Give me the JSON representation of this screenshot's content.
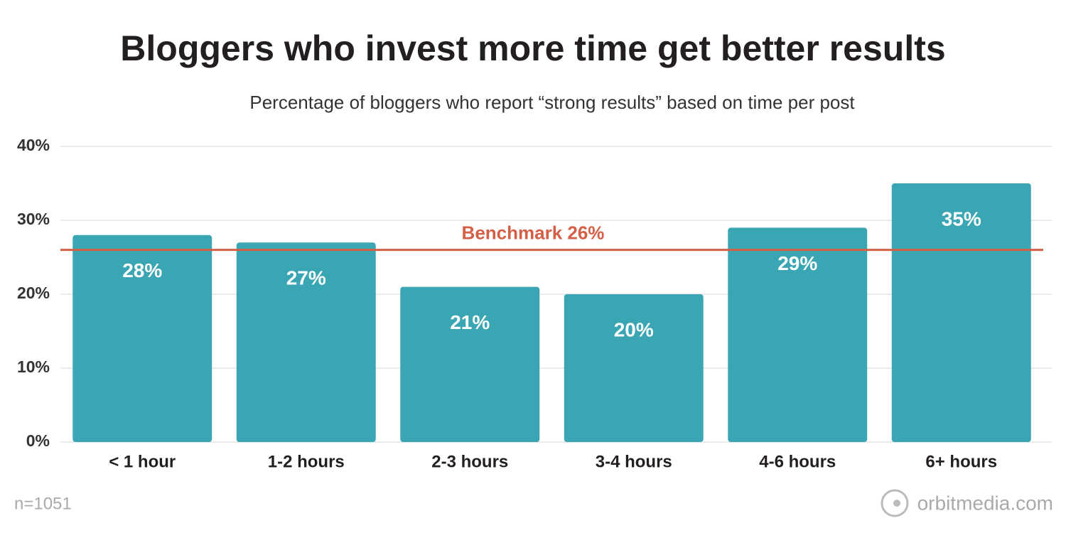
{
  "chart_data": {
    "type": "bar",
    "title": "Bloggers who invest more time get better results",
    "subtitle": "Percentage of bloggers who report “strong results” based on time per post",
    "categories": [
      "< 1 hour",
      "1-2 hours",
      "2-3 hours",
      "3-4 hours",
      "4-6 hours",
      "6+ hours"
    ],
    "values": [
      28,
      27,
      21,
      20,
      29,
      35
    ],
    "value_labels": [
      "28%",
      "27%",
      "21%",
      "20%",
      "29%",
      "35%"
    ],
    "color": "#3aa5b3",
    "ylim": [
      0,
      40
    ],
    "yticks": [
      {
        "value": 0,
        "label": "0%"
      },
      {
        "value": 10,
        "label": "10%"
      },
      {
        "value": 20,
        "label": "20%"
      },
      {
        "value": 30,
        "label": "30%"
      },
      {
        "value": 40,
        "label": "40%"
      }
    ],
    "grid": true,
    "benchmark": {
      "value": 26,
      "label": "Benchmark 26%",
      "color": "#d35f46"
    },
    "note": "n=1051",
    "source": "orbitmedia.com"
  }
}
